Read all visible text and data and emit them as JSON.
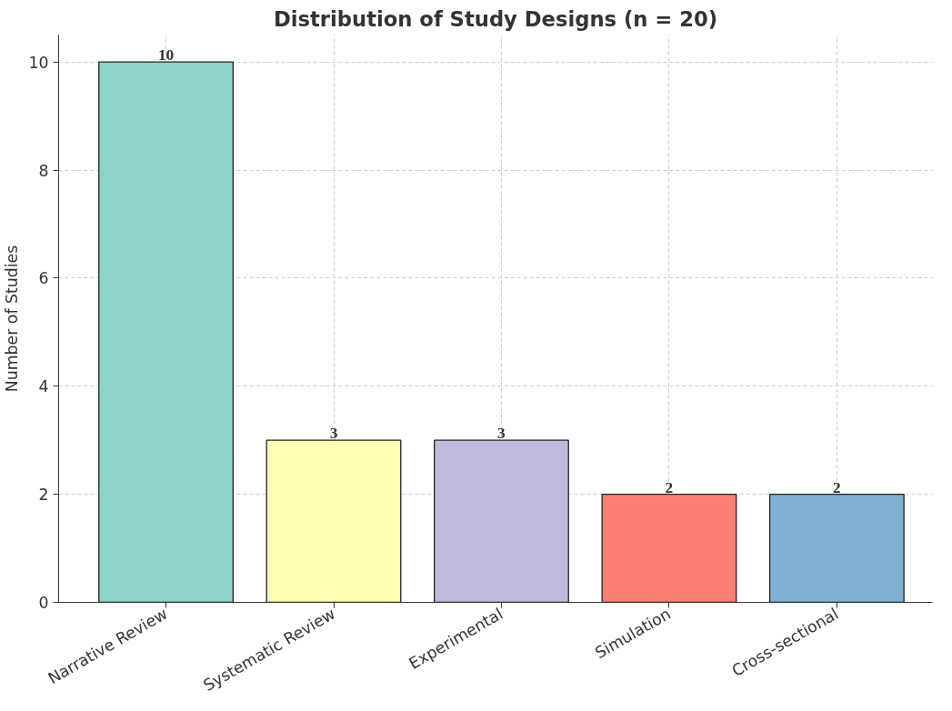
{
  "chart_data": {
    "type": "bar",
    "title": "Distribution of Study Designs (n = 20)",
    "ylabel": "Number of Studies",
    "categories": [
      "Narrative Review",
      "Systematic Review",
      "Experimental",
      "Simulation",
      "Cross-sectional"
    ],
    "values": [
      10,
      3,
      3,
      2,
      2
    ],
    "colors": [
      "#8dd3c7",
      "#ffffb3",
      "#bebada",
      "#fb8072",
      "#80b1d3"
    ],
    "ylim": [
      0,
      10.5
    ],
    "yticks": [
      0,
      2,
      4,
      6,
      8,
      10
    ],
    "grid": true,
    "data_labels": true
  }
}
